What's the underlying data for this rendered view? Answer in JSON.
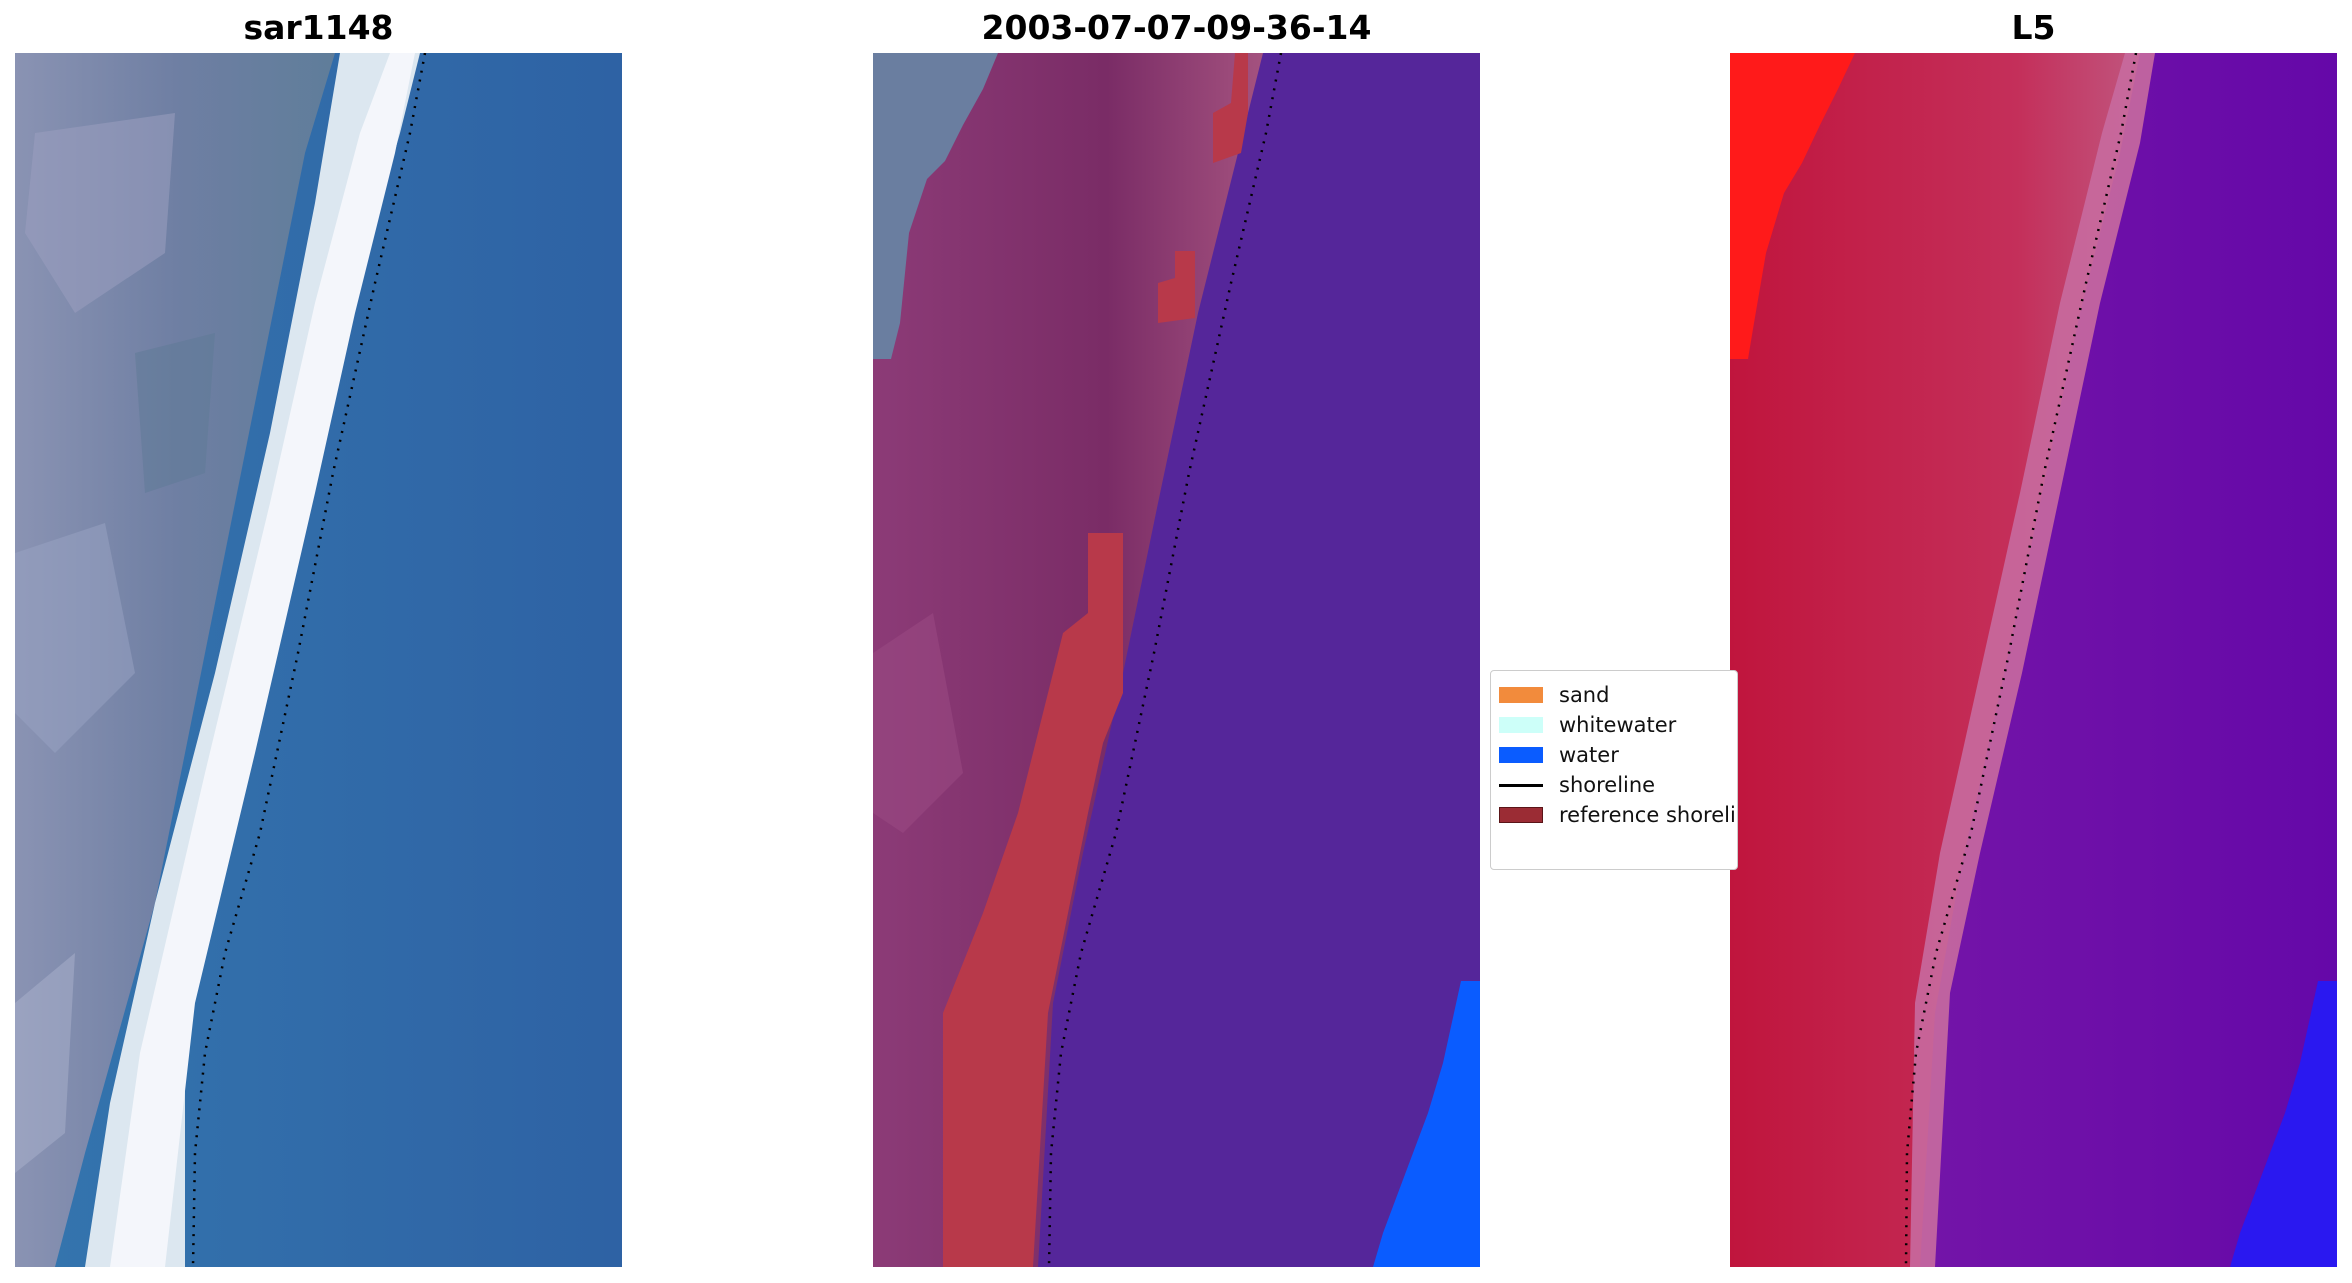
{
  "panels": [
    {
      "title": "sar1148"
    },
    {
      "title": "2003-07-07-09-36-14"
    },
    {
      "title": "L5"
    }
  ],
  "legend": {
    "items": [
      {
        "label": "sand",
        "type": "patch",
        "color": "#f28b3c"
      },
      {
        "label": "whitewater",
        "type": "patch",
        "color": "#cdfff9"
      },
      {
        "label": "water",
        "type": "patch",
        "color": "#0a5cff"
      },
      {
        "label": "shoreline",
        "type": "line",
        "color": "#000000"
      },
      {
        "label": "reference shoreline",
        "type": "patch",
        "color": "#9b2c34"
      }
    ]
  },
  "colors": {
    "ocean_blue": "#2f68a8",
    "land_purple": "#7d2f6a",
    "classified_water": "#55269a",
    "sand_red": "#b8394a",
    "mndwi_red": "#ff1a1a",
    "mndwi_purple": "#6a0aa8"
  }
}
